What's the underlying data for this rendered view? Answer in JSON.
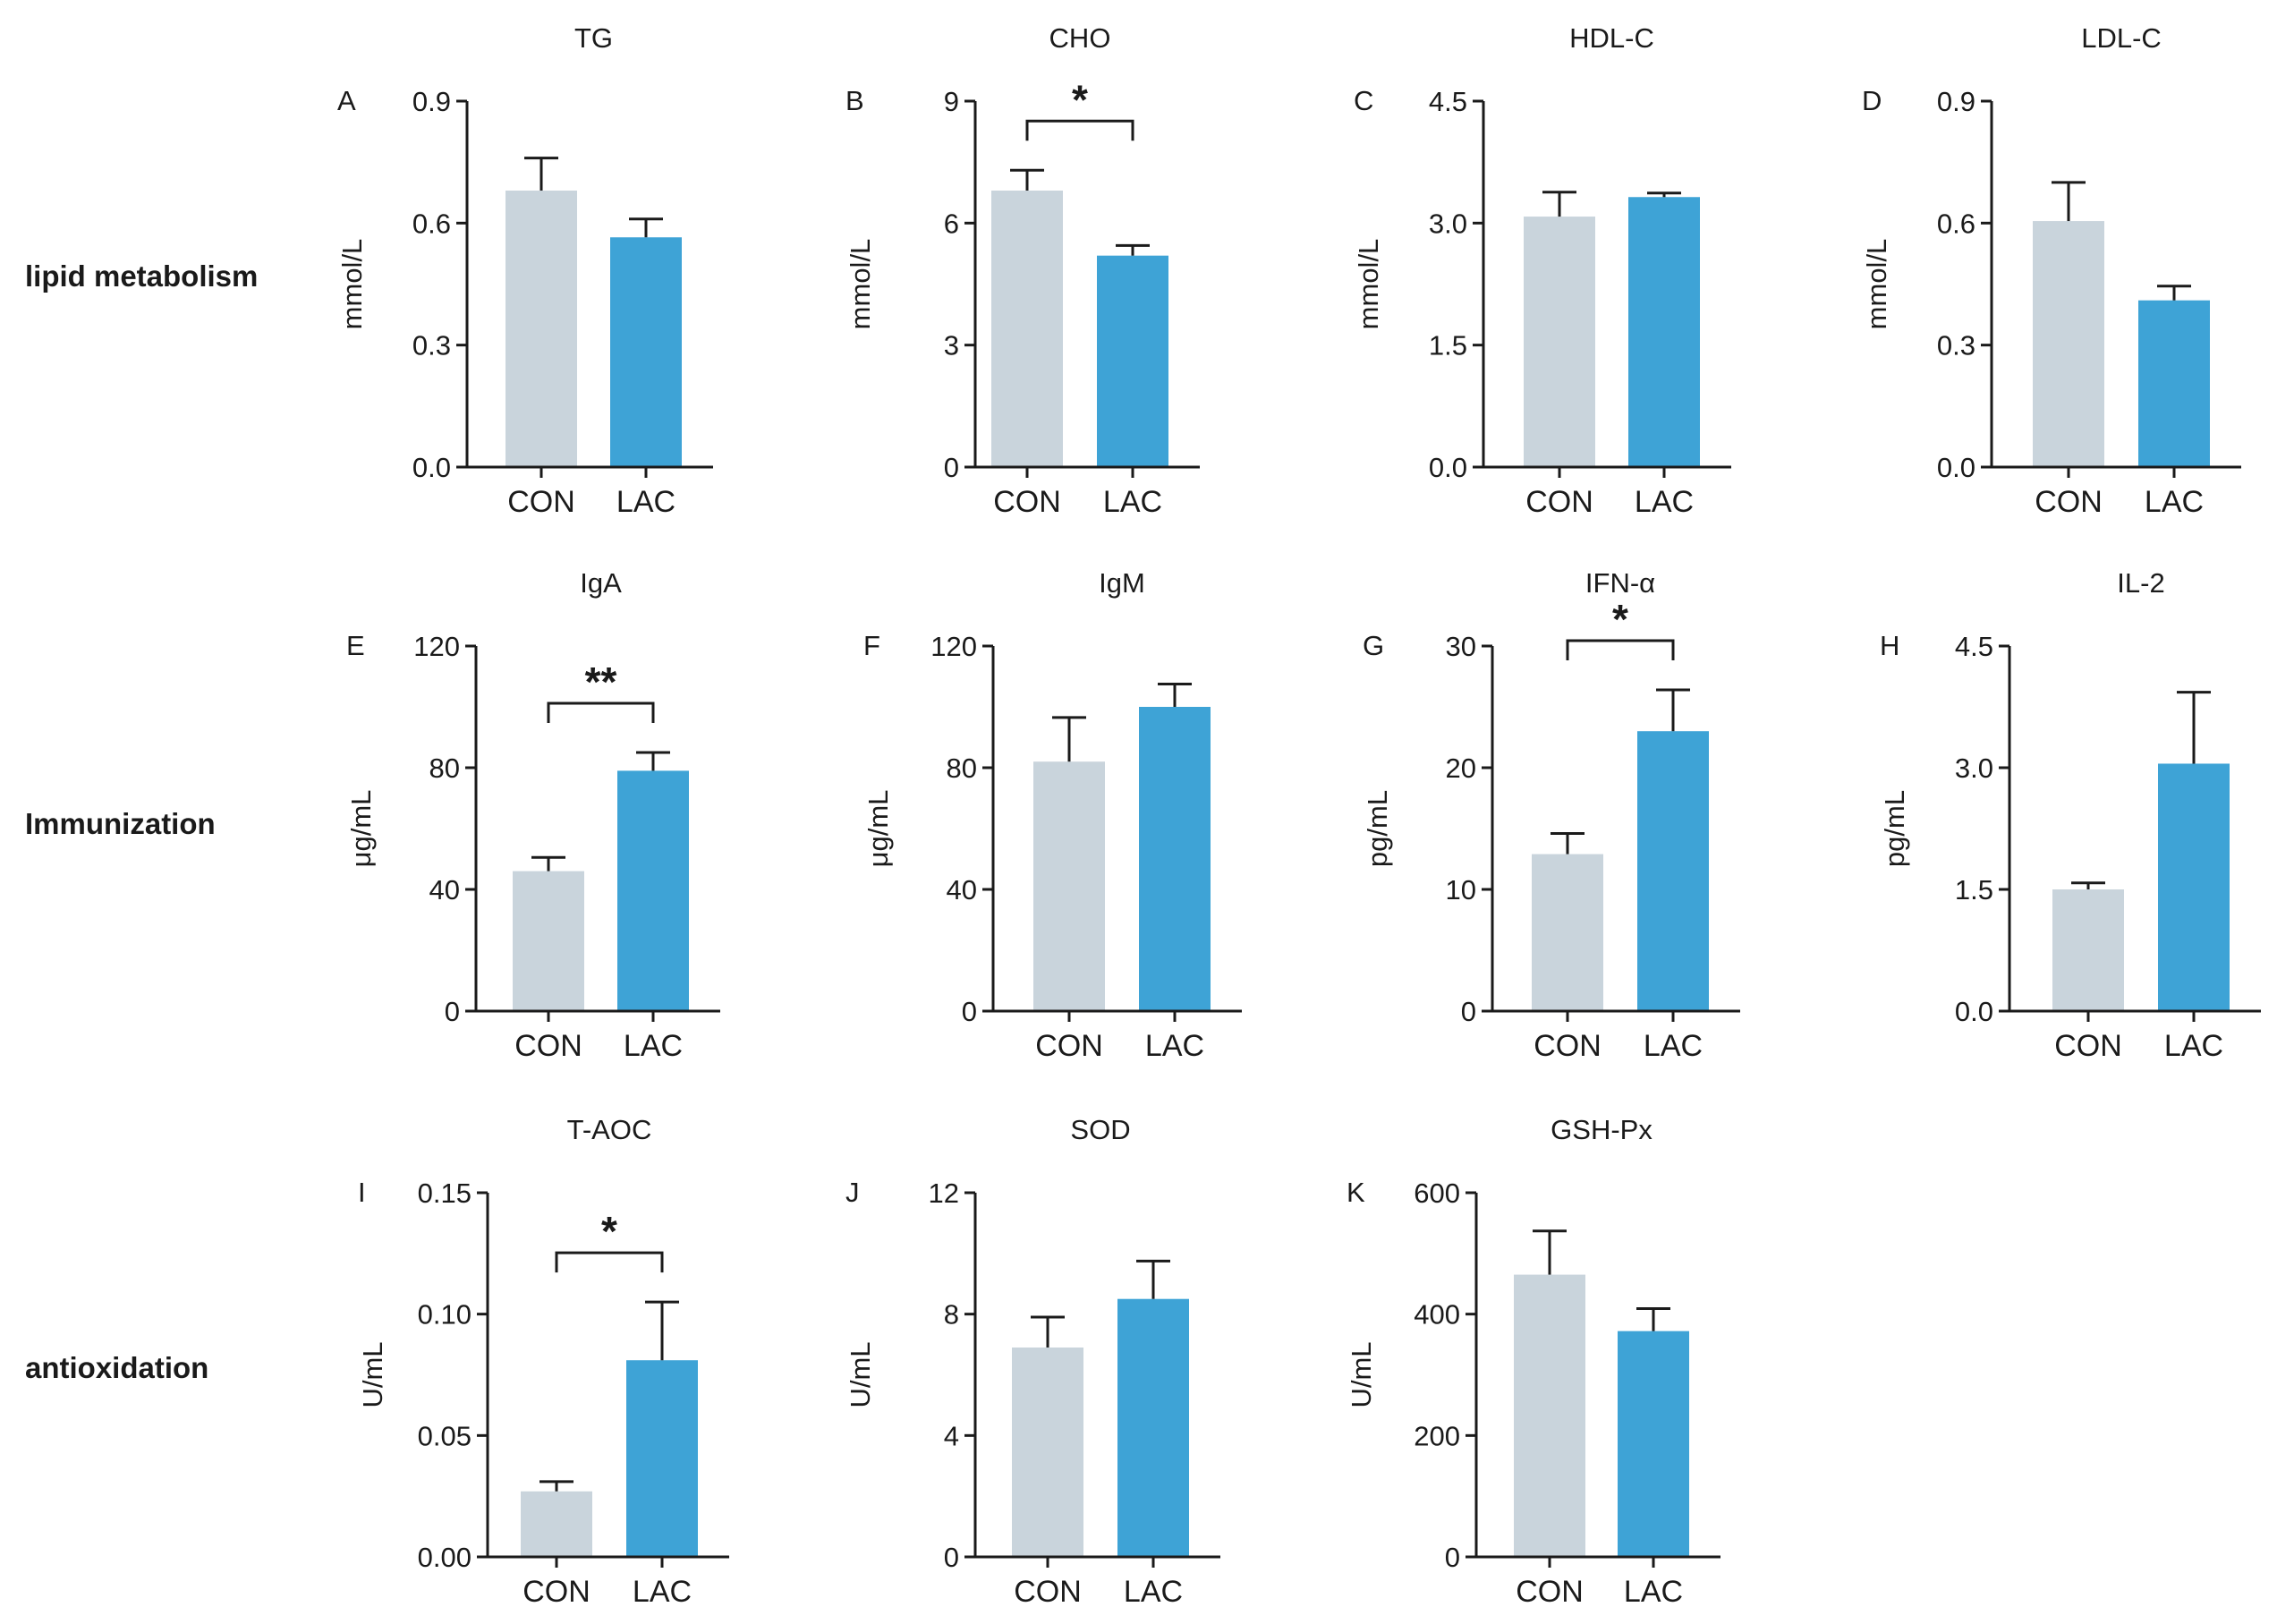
{
  "colors": {
    "CON": "#c9d4dc",
    "LAC": "#3ea3d6",
    "axis": "#1a1a1a"
  },
  "row_labels": [
    "lipid metabolism",
    "Immunization",
    "antioxidation"
  ],
  "chart_data": [
    {
      "panel": "A",
      "type": "bar",
      "title": "TG",
      "ylabel": "mmol/L",
      "categories": [
        "CON",
        "LAC"
      ],
      "values": [
        0.68,
        0.565
      ],
      "errors": [
        0.08,
        0.045
      ],
      "ylim": [
        0,
        0.9
      ],
      "yticks": [
        "0.0",
        "0.3",
        "0.6",
        "0.9"
      ],
      "significance": ""
    },
    {
      "panel": "B",
      "type": "bar",
      "title": "CHO",
      "ylabel": "mmol/L",
      "categories": [
        "CON",
        "LAC"
      ],
      "values": [
        6.8,
        5.2
      ],
      "errors": [
        0.5,
        0.25
      ],
      "ylim": [
        0,
        9
      ],
      "yticks": [
        "0",
        "3",
        "6",
        "9"
      ],
      "significance": "*"
    },
    {
      "panel": "C",
      "type": "bar",
      "title": "HDL-C",
      "ylabel": "mmol/L",
      "categories": [
        "CON",
        "LAC"
      ],
      "values": [
        3.08,
        3.32
      ],
      "errors": [
        0.3,
        0.05
      ],
      "ylim": [
        0,
        4.5
      ],
      "yticks": [
        "0.0",
        "1.5",
        "3.0",
        "4.5"
      ],
      "significance": ""
    },
    {
      "panel": "D",
      "type": "bar",
      "title": "LDL-C",
      "ylabel": "mmol/L",
      "categories": [
        "CON",
        "LAC"
      ],
      "values": [
        0.605,
        0.41
      ],
      "errors": [
        0.095,
        0.035
      ],
      "ylim": [
        0,
        0.9
      ],
      "yticks": [
        "0.0",
        "0.3",
        "0.6",
        "0.9"
      ],
      "significance": ""
    },
    {
      "panel": "E",
      "type": "bar",
      "title": "IgA",
      "ylabel": "μg/mL",
      "categories": [
        "CON",
        "LAC"
      ],
      "values": [
        46,
        79
      ],
      "errors": [
        4.5,
        6
      ],
      "ylim": [
        0,
        120
      ],
      "yticks": [
        "0",
        "40",
        "80",
        "120"
      ],
      "significance": "**"
    },
    {
      "panel": "F",
      "type": "bar",
      "title": "IgM",
      "ylabel": "μg/mL",
      "categories": [
        "CON",
        "LAC"
      ],
      "values": [
        82,
        100
      ],
      "errors": [
        14.5,
        7.5
      ],
      "ylim": [
        0,
        120
      ],
      "yticks": [
        "0",
        "40",
        "80",
        "120"
      ],
      "significance": ""
    },
    {
      "panel": "G",
      "type": "bar",
      "title": "IFN-α",
      "ylabel": "pg/mL",
      "categories": [
        "CON",
        "LAC"
      ],
      "values": [
        12.9,
        23
      ],
      "errors": [
        1.7,
        3.4
      ],
      "ylim": [
        0,
        30
      ],
      "yticks": [
        "0",
        "10",
        "20",
        "30"
      ],
      "significance": "*"
    },
    {
      "panel": "H",
      "type": "bar",
      "title": "IL-2",
      "ylabel": "pg/mL",
      "categories": [
        "CON",
        "LAC"
      ],
      "values": [
        1.5,
        3.05
      ],
      "errors": [
        0.08,
        0.88
      ],
      "ylim": [
        0,
        4.5
      ],
      "yticks": [
        "0.0",
        "1.5",
        "3.0",
        "4.5"
      ],
      "significance": ""
    },
    {
      "panel": "I",
      "type": "bar",
      "title": "T-AOC",
      "ylabel": "U/mL",
      "categories": [
        "CON",
        "LAC"
      ],
      "values": [
        0.027,
        0.081
      ],
      "errors": [
        0.004,
        0.024
      ],
      "ylim": [
        0,
        0.15
      ],
      "yticks": [
        "0.00",
        "0.05",
        "0.10",
        "0.15"
      ],
      "significance": "*"
    },
    {
      "panel": "J",
      "type": "bar",
      "title": "SOD",
      "ylabel": "U/mL",
      "categories": [
        "CON",
        "LAC"
      ],
      "values": [
        6.9,
        8.5
      ],
      "errors": [
        1.0,
        1.25
      ],
      "ylim": [
        0,
        12
      ],
      "yticks": [
        "0",
        "4",
        "8",
        "12"
      ],
      "significance": ""
    },
    {
      "panel": "K",
      "type": "bar",
      "title": "GSH-Px",
      "ylabel": "U/mL",
      "categories": [
        "CON",
        "LAC"
      ],
      "values": [
        465,
        372
      ],
      "errors": [
        72,
        37
      ],
      "ylim": [
        0,
        600
      ],
      "yticks": [
        "0",
        "200",
        "400",
        "600"
      ],
      "significance": ""
    }
  ]
}
